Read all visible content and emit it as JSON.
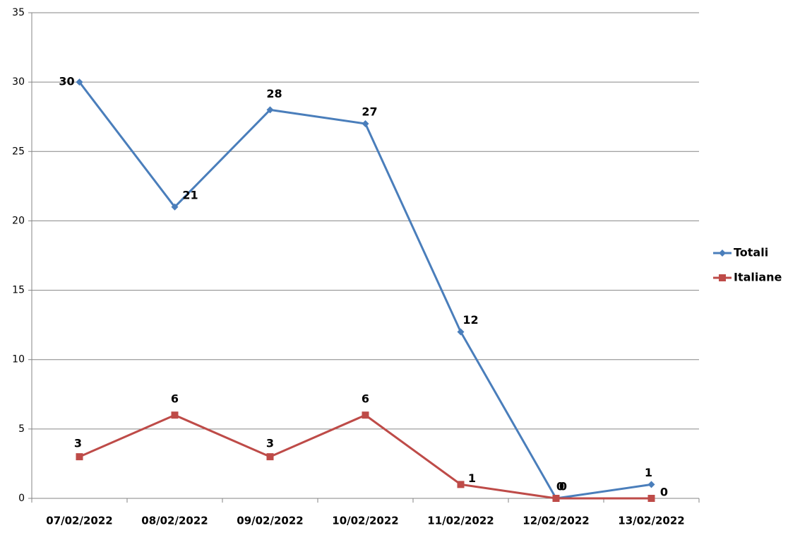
{
  "chart_data": {
    "type": "line",
    "categories": [
      "07/02/2022",
      "08/02/2022",
      "09/02/2022",
      "10/02/2022",
      "11/02/2022",
      "12/02/2022",
      "13/02/2022"
    ],
    "series": [
      {
        "name": "Totali",
        "color": "#4a7ebb",
        "marker": "diamond",
        "values": [
          30,
          21,
          28,
          27,
          12,
          0,
          1
        ]
      },
      {
        "name": "Italiane",
        "color": "#be4b48",
        "marker": "square",
        "values": [
          3,
          6,
          3,
          6,
          1,
          0,
          0
        ]
      }
    ],
    "ylim": [
      0,
      35
    ],
    "yticks": [
      0,
      5,
      10,
      15,
      20,
      25,
      30,
      35
    ],
    "grid": true,
    "legend": "right"
  }
}
